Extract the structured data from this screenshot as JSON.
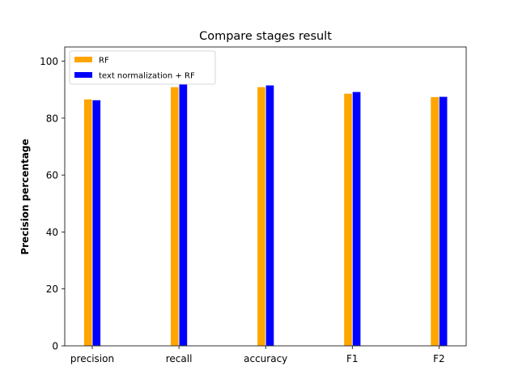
{
  "chart_data": {
    "type": "bar",
    "title": "Compare stages result",
    "xlabel": "",
    "ylabel": "Precision percentage",
    "categories": [
      "precision",
      "recall",
      "accuracy",
      "F1",
      "F2"
    ],
    "series": [
      {
        "name": "RF",
        "color": "#FFA500",
        "values": [
          86.7,
          91.0,
          91.0,
          88.7,
          87.5
        ]
      },
      {
        "name": "text normalization + RF",
        "color": "#0000FF",
        "values": [
          86.4,
          92.0,
          91.6,
          89.3,
          87.6
        ]
      }
    ],
    "ylim": [
      0,
      105
    ],
    "yticks": [
      0,
      20,
      40,
      60,
      80,
      100
    ],
    "grid": false,
    "legend_position": "top-left"
  }
}
